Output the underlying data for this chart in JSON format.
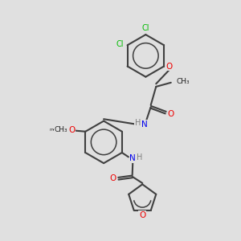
{
  "bg_color": "#e0e0e0",
  "bond_color": "#404040",
  "bond_width": 1.5,
  "cl_color": "#00bb00",
  "n_color": "#0000ee",
  "o_color": "#ee0000",
  "h_color": "#808080",
  "c_color": "#202020",
  "font_size": 7.0,
  "xlim": [
    0,
    10
  ],
  "ylim": [
    0,
    10
  ]
}
